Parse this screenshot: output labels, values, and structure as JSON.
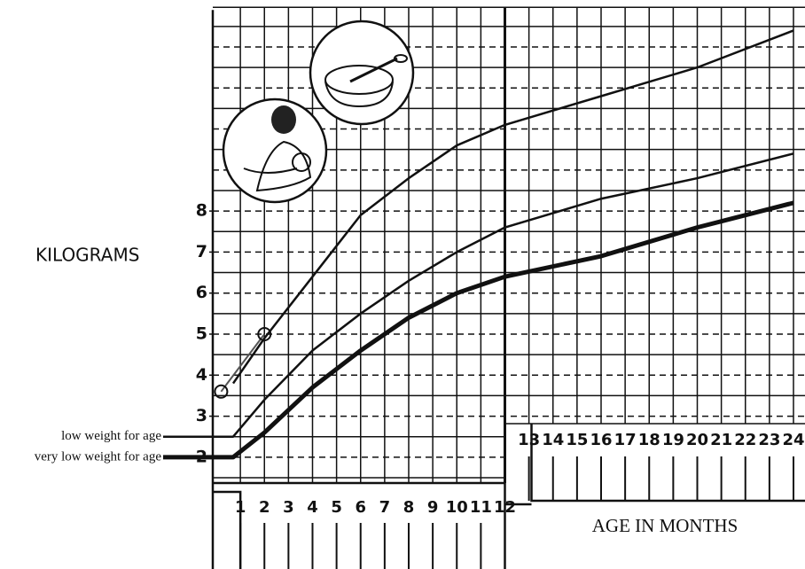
{
  "chart_data": {
    "type": "line",
    "title": "KILOGRAMS",
    "x_label": "AGE IN MONTHS",
    "x": [
      0,
      0.7,
      2,
      4,
      6,
      8,
      10,
      12,
      16,
      20,
      24
    ],
    "series": [
      {
        "color": "#111111",
        "linewidth": 2.5,
        "values": [
          null,
          3.8,
          4.9,
          6.4,
          7.9,
          8.8,
          9.6,
          10.1,
          10.8,
          11.5,
          12.4
        ]
      },
      {
        "name": "low weight for age",
        "color": "#111111",
        "linewidth": 2.5,
        "values": [
          2.5,
          2.5,
          3.4,
          4.6,
          5.5,
          6.3,
          7.0,
          7.6,
          8.3,
          8.8,
          9.4
        ]
      },
      {
        "name": "very low weight for age",
        "color": "#111111",
        "linewidth": 5,
        "values": [
          2.0,
          2.0,
          2.6,
          3.7,
          4.6,
          5.4,
          6.0,
          6.4,
          6.9,
          7.6,
          8.2
        ]
      }
    ],
    "child_points": {
      "x": [
        0.2,
        2
      ],
      "values": [
        3.6,
        5.0
      ],
      "color": "#555555"
    },
    "xlim": [
      0,
      24
    ],
    "xticks": [
      1,
      2,
      3,
      4,
      5,
      6,
      7,
      8,
      9,
      10,
      11,
      12,
      13,
      14,
      15,
      16,
      17,
      18,
      19,
      20,
      21,
      22,
      23,
      24
    ],
    "ylim": [
      1.5,
      12.9
    ],
    "yticks": [
      2,
      3,
      4,
      5,
      6,
      7,
      8
    ],
    "grid": true
  }
}
